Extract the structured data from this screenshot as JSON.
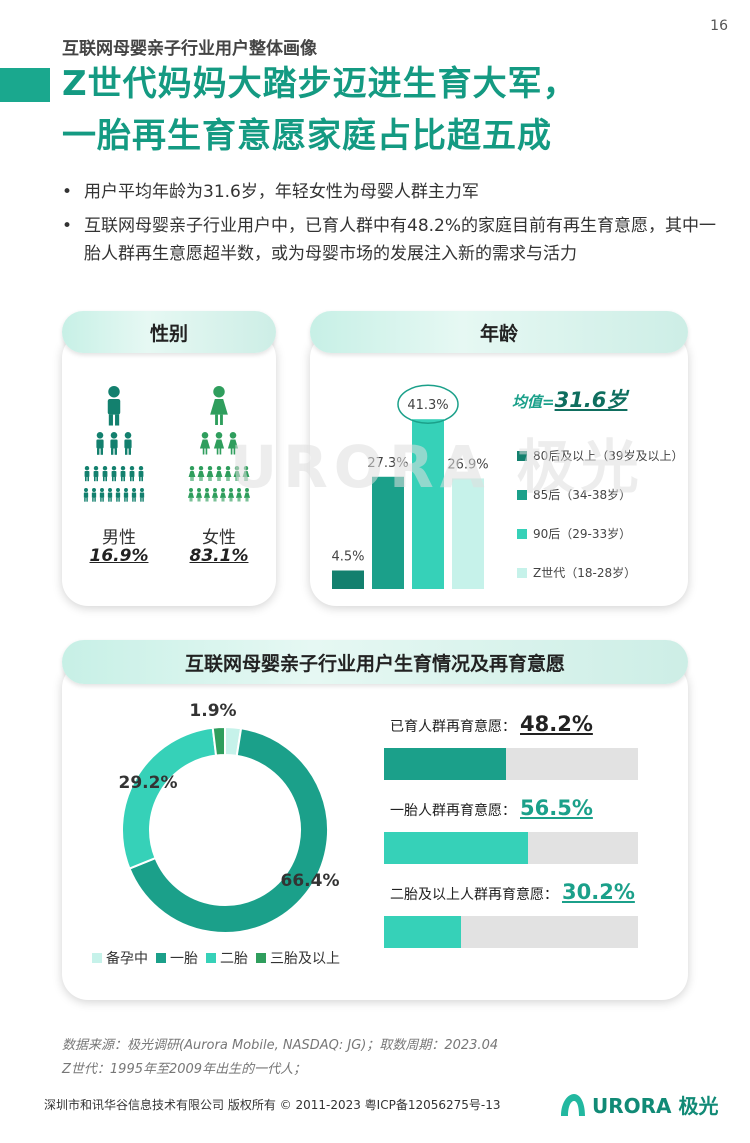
{
  "page_number": "16",
  "section_label": "互联网母婴亲子行业用户整体画像",
  "title_lines": [
    "Z世代妈妈大踏步迈进生育大军，",
    "一胎再生育意愿家庭占比超五成"
  ],
  "bullets": [
    "用户平均年龄为31.6岁，年轻女性为母婴人群主力军",
    "互联网母婴亲子行业用户中，已育人群中有48.2%的家庭目前有再生育意愿，其中一胎人群再生意愿超半数，或为母婴市场的发展注入新的需求与活力"
  ],
  "gender": {
    "header": "性别",
    "male_label": "男性",
    "male_value": "16.9%",
    "female_label": "女性",
    "female_value": "83.1%"
  },
  "age": {
    "header": "年龄",
    "mean_label": "均值=",
    "mean_value": "31.6岁"
  },
  "fertility": {
    "header": "互联网母婴亲子行业用户生育情况及再育意愿"
  },
  "watermark": "URORA 极光",
  "colors": {
    "teal_dark": "#13806e",
    "teal": "#1ba08a",
    "teal_mid": "#36d1b8",
    "teal_light": "#c6f2ea",
    "green_deep": "#2f9e5d"
  },
  "chart_data": [
    {
      "type": "bar",
      "categories": [
        "80后及以上（39岁及以上）",
        "85后（34-38岁）",
        "90后（29-33岁）",
        "Z世代（18-28岁）"
      ],
      "values": [
        4.5,
        27.3,
        41.3,
        26.9
      ],
      "labels": [
        "4.5%",
        "27.3%",
        "41.3%",
        "26.9%"
      ],
      "ylim": [
        0,
        45
      ],
      "highlight": "41.3%"
    },
    {
      "type": "pie",
      "categories": [
        "备孕中",
        "一胎",
        "二胎",
        "三胎及以上"
      ],
      "values": [
        2.5,
        66.4,
        29.2,
        1.9
      ],
      "labels": [
        "",
        "66.4%",
        "29.2%",
        "1.9%"
      ],
      "donut": true
    },
    {
      "type": "bar",
      "orientation": "horizontal",
      "categories": [
        "已育人群再育意愿：",
        "一胎人群再育意愿：",
        "二胎及以上人群再育意愿："
      ],
      "values": [
        48.2,
        56.5,
        30.2
      ],
      "labels": [
        "48.2%",
        "56.5%",
        "30.2%"
      ],
      "xlim": [
        0,
        100
      ]
    }
  ],
  "source": "数据来源：极光调研(Aurora Mobile, NASDAQ: JG)；取数周期：2023.04",
  "note": "Z世代：1995年至2009年出生的一代人；",
  "footer": "深圳市和讯华谷信息技术有限公司 版权所有 © 2011-2023 粤ICP备12056275号-13",
  "logo_text": "URORA 极光"
}
